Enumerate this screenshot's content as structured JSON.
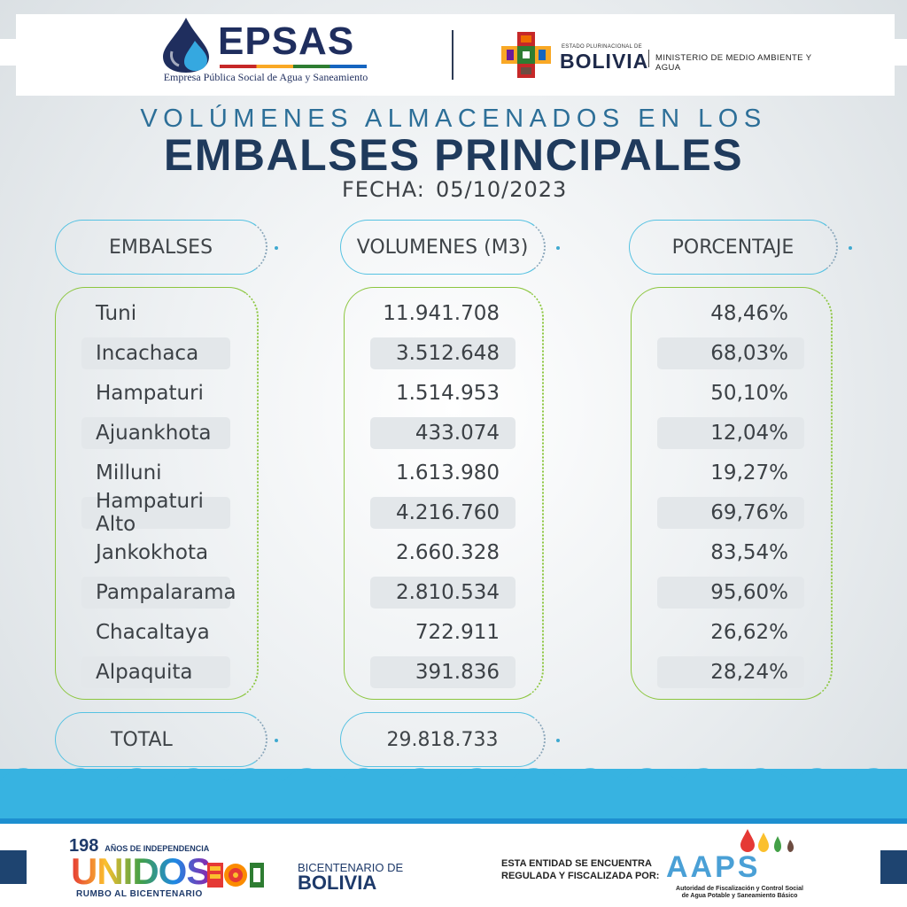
{
  "header": {
    "epsas_name": "EPSAS",
    "epsas_subtitle": "Empresa Pública Social de Agua y Saneamiento",
    "bolivia_small": "ESTADO PLURINACIONAL DE",
    "bolivia_name": "BOLIVIA",
    "ministry": "MINISTERIO DE MEDIO AMBIENTE Y AGUA"
  },
  "title": {
    "line1": "VOLÚMENES ALMACENADOS EN LOS",
    "line2": "EMBALSES PRINCIPALES",
    "date_label": "FECHA:",
    "date_value": "05/10/2023"
  },
  "table": {
    "headers": [
      "EMBALSES",
      "VOLUMENES (M3)",
      "PORCENTAJE"
    ],
    "rows": [
      {
        "name": "Tuni",
        "volume": "11.941.708",
        "percent": "48,46%"
      },
      {
        "name": "Incachaca",
        "volume": "3.512.648",
        "percent": "68,03%"
      },
      {
        "name": "Hampaturi",
        "volume": "1.514.953",
        "percent": "50,10%"
      },
      {
        "name": "Ajuankhota",
        "volume": "433.074",
        "percent": "12,04%"
      },
      {
        "name": "Milluni",
        "volume": "1.613.980",
        "percent": "19,27%"
      },
      {
        "name": "Hampaturi Alto",
        "volume": "4.216.760",
        "percent": "69,76%"
      },
      {
        "name": "Jankokhota",
        "volume": "2.660.328",
        "percent": "83,54%"
      },
      {
        "name": "Pampalarama",
        "volume": "2.810.534",
        "percent": "95,60%"
      },
      {
        "name": "Chacaltaya",
        "volume": "722.911",
        "percent": "26,62%"
      },
      {
        "name": "Alpaquita",
        "volume": "391.836",
        "percent": "28,24%"
      }
    ],
    "total_label": "TOTAL",
    "total_volume": "29.818.733"
  },
  "footer": {
    "anos_number": "198",
    "anos_text": "AÑOS DE INDEPENDENCIA",
    "unidos": "UNIDOS",
    "unidos_sub": "RUMBO AL BICENTENARIO",
    "bicentenario_small": "BICENTENARIO DE",
    "bicentenario_big": "BOLIVIA",
    "regulated_line1": "ESTA ENTIDAD SE ENCUENTRA",
    "regulated_line2": "REGULADA Y FISCALIZADA POR:",
    "aaps_name": "AAPS",
    "aaps_sub1": "Autoridad de Fiscalización y Control Social",
    "aaps_sub2": "de Agua Potable y Saneamiento Básico"
  },
  "colors": {
    "title_dark": "#1f3a5c",
    "title_light": "#2d6f98",
    "pill_border": "#56c2e2",
    "box_border": "#8cc63f",
    "wave": "#37b3e1"
  }
}
